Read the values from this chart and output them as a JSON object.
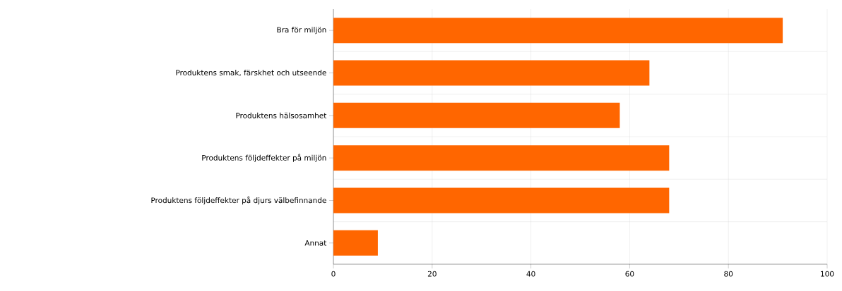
{
  "chart_data": {
    "type": "bar",
    "orientation": "horizontal",
    "categories": [
      "Bra för miljön",
      "Produktens smak, färskhet och utseende",
      "Produktens hälsosamhet",
      "Produktens följdeffekter på miljön",
      "Produktens följdeffekter på djurs välbefinnande",
      "Annat"
    ],
    "values": [
      91,
      64,
      58,
      68,
      68,
      9
    ],
    "color": "#ff6600",
    "xlim": [
      0,
      100
    ],
    "xticks": [
      0,
      20,
      40,
      60,
      80,
      100
    ],
    "grid": true
  }
}
